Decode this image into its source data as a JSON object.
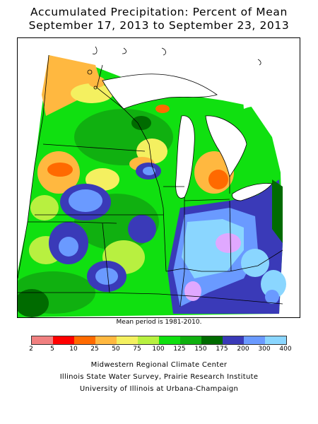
{
  "title": {
    "line1": "Accumulated Precipitation: Percent of Mean",
    "line2": "September 17, 2013 to September 23, 2013"
  },
  "map": {
    "caption": "Mean period is 1981-2010."
  },
  "legend": {
    "labels": [
      "2",
      "5",
      "10",
      "25",
      "50",
      "75",
      "100",
      "125",
      "150",
      "175",
      "200",
      "300",
      "400"
    ],
    "colors": [
      "#f08080",
      "#ff0000",
      "#ff6a00",
      "#ffb840",
      "#f4f060",
      "#b8f040",
      "#10e010",
      "#10b010",
      "#006b00",
      "#3a3ab8",
      "#6a9aff",
      "#8ad6ff",
      "#e0a8ff"
    ]
  },
  "credits": {
    "line1": "Midwestern Regional Climate Center",
    "line2": "Illinois State Water Survey, Prairie Research Institute",
    "line3": "University of Illinois at Urbana-Champaign"
  }
}
